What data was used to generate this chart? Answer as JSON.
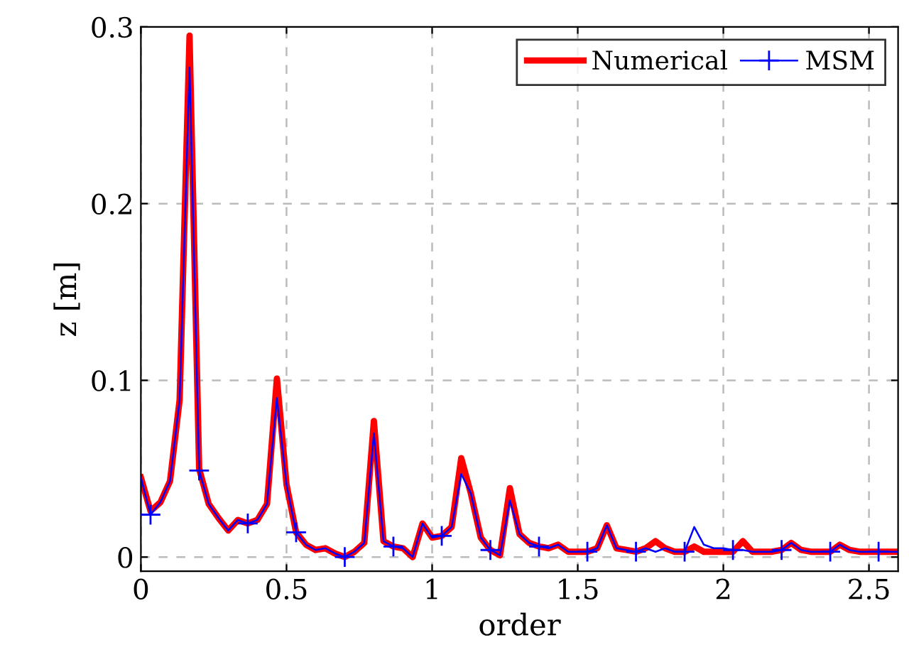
{
  "chart_data": {
    "type": "line",
    "xlabel": "order",
    "ylabel": "z [m]",
    "x": [
      0,
      0.033,
      0.067,
      0.1,
      0.133,
      0.167,
      0.2,
      0.233,
      0.267,
      0.3,
      0.333,
      0.367,
      0.4,
      0.433,
      0.467,
      0.5,
      0.533,
      0.567,
      0.6,
      0.633,
      0.667,
      0.7,
      0.733,
      0.767,
      0.8,
      0.833,
      0.867,
      0.9,
      0.933,
      0.967,
      1.0,
      1.033,
      1.067,
      1.1,
      1.133,
      1.167,
      1.2,
      1.233,
      1.267,
      1.3,
      1.333,
      1.367,
      1.4,
      1.433,
      1.467,
      1.5,
      1.533,
      1.567,
      1.6,
      1.633,
      1.667,
      1.7,
      1.733,
      1.767,
      1.8,
      1.833,
      1.867,
      1.9,
      1.933,
      1.967,
      2.0,
      2.033,
      2.067,
      2.1,
      2.133,
      2.167,
      2.2,
      2.233,
      2.267,
      2.3,
      2.333,
      2.367,
      2.4,
      2.433,
      2.467,
      2.5,
      2.533,
      2.567,
      2.6
    ],
    "series": [
      {
        "name": "Numerical",
        "color": "#ff0000",
        "marker": "none",
        "values": [
          0.045,
          0.026,
          0.031,
          0.043,
          0.089,
          0.295,
          0.05,
          0.03,
          0.022,
          0.015,
          0.021,
          0.019,
          0.021,
          0.03,
          0.101,
          0.041,
          0.014,
          0.007,
          0.004,
          0.005,
          0.002,
          0.0,
          0.003,
          0.008,
          0.077,
          0.009,
          0.006,
          0.005,
          0.0,
          0.019,
          0.011,
          0.012,
          0.017,
          0.056,
          0.036,
          0.011,
          0.004,
          0.001,
          0.039,
          0.013,
          0.008,
          0.006,
          0.005,
          0.007,
          0.003,
          0.003,
          0.003,
          0.005,
          0.018,
          0.005,
          0.004,
          0.003,
          0.005,
          0.009,
          0.005,
          0.003,
          0.003,
          0.006,
          0.003,
          0.003,
          0.003,
          0.003,
          0.009,
          0.003,
          0.003,
          0.003,
          0.004,
          0.008,
          0.004,
          0.003,
          0.003,
          0.003,
          0.007,
          0.004,
          0.003,
          0.003,
          0.003,
          0.003,
          0.003
        ]
      },
      {
        "type": "scatter",
        "color": "#0000ff",
        "marker": "cross",
        "x": [
          0.033,
          0.2,
          0.367,
          0.533,
          0.7,
          0.867,
          1.033,
          1.2,
          1.367,
          1.533,
          1.7,
          1.867,
          2.033,
          2.2,
          2.367,
          2.533
        ],
        "values": [
          0.024,
          0.049,
          0.019,
          0.014,
          0.0,
          0.006,
          0.012,
          0.004,
          0.006,
          0.003,
          0.003,
          0.003,
          0.004,
          0.004,
          0.003,
          0.003
        ]
      },
      {
        "name": "MSM",
        "color": "#0000ff",
        "marker": "none",
        "values": [
          0.045,
          0.024,
          0.031,
          0.043,
          0.089,
          0.277,
          0.049,
          0.03,
          0.022,
          0.015,
          0.021,
          0.019,
          0.021,
          0.03,
          0.09,
          0.041,
          0.014,
          0.007,
          0.004,
          0.005,
          0.002,
          0.0,
          0.003,
          0.008,
          0.07,
          0.009,
          0.006,
          0.005,
          0.0,
          0.019,
          0.011,
          0.012,
          0.017,
          0.047,
          0.036,
          0.011,
          0.004,
          0.001,
          0.032,
          0.013,
          0.008,
          0.006,
          0.005,
          0.007,
          0.003,
          0.003,
          0.003,
          0.005,
          0.018,
          0.005,
          0.004,
          0.003,
          0.005,
          0.003,
          0.005,
          0.003,
          0.003,
          0.017,
          0.007,
          0.005,
          0.005,
          0.004,
          0.004,
          0.003,
          0.003,
          0.003,
          0.004,
          0.008,
          0.004,
          0.003,
          0.003,
          0.003,
          0.007,
          0.004,
          0.003,
          0.003,
          0.003,
          0.003,
          0.003
        ]
      }
    ],
    "xlim": [
      0,
      2.6
    ],
    "ylim": [
      -0.008,
      0.3
    ],
    "xticks": [
      0,
      0.5,
      1,
      1.5,
      2,
      2.5
    ],
    "yticks": [
      0,
      0.1,
      0.2,
      0.3
    ],
    "grid": true,
    "legend": "top right",
    "line_style": "solid"
  }
}
